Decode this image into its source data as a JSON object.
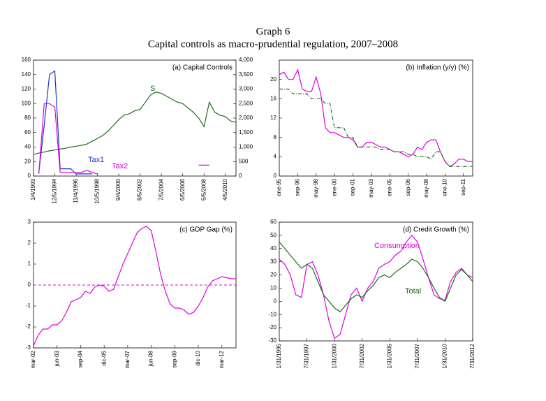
{
  "header": {
    "title": "Graph 6",
    "subtitle": "Capital controls as macro-prudential regulation, 2007–2008"
  },
  "chart_data": [
    {
      "type": "line",
      "title": "(a) Capital Controls",
      "categories": [
        "1/4/1993",
        null,
        null,
        null,
        "12/5/1994",
        null,
        null,
        null,
        "11/4/1996",
        null,
        null,
        null,
        "10/5/1998",
        null,
        null,
        null,
        "9/4/2000",
        null,
        null,
        null,
        "8/5/2002",
        null,
        null,
        null,
        "7/5/2004",
        null,
        null,
        null,
        "6/5/2006",
        null,
        null,
        null,
        "5/5/2008",
        null,
        null,
        null,
        "4/5/2010",
        null,
        null
      ],
      "ylim": [
        0,
        160
      ],
      "yticks": [
        0,
        20,
        40,
        60,
        80,
        100,
        120,
        140,
        160
      ],
      "y2lim": [
        0,
        4000
      ],
      "y2ticks": [
        0,
        500,
        {
          "value": 1000,
          "label": "1,000"
        },
        {
          "value": 1500,
          "label": "1,500"
        },
        {
          "value": 2000,
          "label": "2,000"
        },
        {
          "value": 2500,
          "label": "2,500"
        },
        {
          "value": 3000,
          "label": "3,000"
        },
        {
          "value": 3500,
          "label": "3,500"
        },
        {
          "value": 4000,
          "label": "4,000"
        }
      ],
      "series": [
        {
          "name": "S",
          "color": "#1e6b1e",
          "axis": "y2",
          "values": [
            750,
            790,
            830,
            870,
            900,
            930,
            960,
            1000,
            1030,
            1060,
            1100,
            1200,
            1300,
            1400,
            1550,
            1750,
            1950,
            2100,
            2150,
            2250,
            2300,
            2550,
            2800,
            2900,
            2850,
            2750,
            2650,
            2550,
            2500,
            2350,
            2200,
            2000,
            1700,
            2550,
            2200,
            2100,
            2050,
            1900,
            1850
          ]
        },
        {
          "name": "Tax1",
          "color": "#2233cc",
          "values": [
            null,
            5,
            70,
            140,
            145,
            10,
            10,
            10,
            3,
            3,
            3,
            3,
            null,
            null,
            null,
            null,
            null,
            null,
            null,
            null,
            null,
            null,
            null,
            null,
            null,
            null,
            null,
            null,
            null,
            null,
            null,
            null,
            null,
            null,
            null,
            null,
            null,
            null,
            null
          ]
        },
        {
          "name": "Tax2",
          "color": "#e000e0",
          "values": [
            null,
            3,
            100,
            100,
            95,
            5,
            5,
            5,
            5,
            5,
            8,
            5,
            3,
            null,
            null,
            null,
            null,
            null,
            null,
            null,
            null,
            null,
            null,
            null,
            null,
            null,
            null,
            null,
            null,
            null,
            null,
            15,
            15,
            15,
            null,
            null,
            null,
            null,
            null
          ]
        }
      ]
    },
    {
      "type": "line",
      "title": "(b) Inflation (y/y) (%)",
      "categories": [
        "ene-95",
        null,
        null,
        null,
        "sep-96",
        null,
        null,
        null,
        "may-98",
        null,
        null,
        null,
        "ene-00",
        null,
        null,
        null,
        "sep-01",
        null,
        null,
        null,
        "may-03",
        null,
        null,
        null,
        "ene-05",
        null,
        null,
        null,
        "sep-06",
        null,
        null,
        null,
        "may-08",
        null,
        null,
        null,
        "ene-10",
        null,
        null,
        null,
        "sep-11",
        null,
        null
      ],
      "ylim": [
        0,
        24
      ],
      "yticks": [
        0,
        4,
        8,
        12,
        16,
        20
      ],
      "series": [
        {
          "color": "#e000e0",
          "values": [
            21,
            21.5,
            20,
            20,
            22,
            18,
            17.5,
            17.5,
            20.5,
            17,
            10,
            9,
            9,
            8.5,
            8,
            8,
            7.5,
            6,
            6,
            7,
            7,
            6.5,
            6,
            6,
            5.5,
            5,
            5,
            4.5,
            4,
            4.5,
            6,
            5.5,
            7,
            7.5,
            7.5,
            5,
            3,
            2,
            2.5,
            3.5,
            3.5,
            3,
            3
          ]
        },
        {
          "color": "#1e6b1e",
          "dashed": true,
          "values": [
            18,
            18,
            18,
            17,
            17,
            17,
            17,
            16,
            16,
            16,
            15,
            15,
            10,
            10,
            10,
            8,
            8,
            6,
            6,
            6,
            6,
            6,
            5.5,
            5.5,
            5.5,
            5,
            5,
            5,
            4.5,
            4.5,
            4,
            4,
            4,
            3.5,
            5,
            5,
            3,
            2,
            2,
            2,
            2,
            2,
            2
          ]
        }
      ]
    },
    {
      "type": "line",
      "title": "(c) GDP Gap (%)",
      "categories": [
        "mar-02",
        null,
        null,
        null,
        null,
        "jun-03",
        null,
        null,
        null,
        null,
        "sep-04",
        null,
        null,
        null,
        null,
        "dic-05",
        null,
        null,
        null,
        null,
        "mar-07",
        null,
        null,
        null,
        null,
        "jun-08",
        null,
        null,
        null,
        null,
        "sep-09",
        null,
        null,
        null,
        null,
        "dic-10",
        null,
        null,
        null,
        null,
        "mar-12",
        null,
        null,
        null
      ],
      "ylim": [
        -3,
        3
      ],
      "yticks": [
        -3,
        -2,
        -1,
        0,
        1,
        2,
        3
      ],
      "reference_line": {
        "value": 0,
        "color": "#e000e0",
        "dashed": true
      },
      "color": "#e000e0",
      "values": [
        -2.9,
        -2.4,
        -2.1,
        -2.1,
        -1.9,
        -1.9,
        -1.7,
        -1.3,
        -0.8,
        -0.7,
        -0.6,
        -0.3,
        -0.4,
        -0.1,
        0,
        -0.05,
        -0.3,
        -0.2,
        0.4,
        1.0,
        1.5,
        2.0,
        2.5,
        2.7,
        2.8,
        2.6,
        1.6,
        0.5,
        -0.3,
        -0.9,
        -1.1,
        -1.1,
        -1.2,
        -1.4,
        -1.3,
        -1.0,
        -0.6,
        -0.1,
        0.2,
        0.3,
        0.4,
        0.35,
        0.3,
        0.3
      ]
    },
    {
      "type": "line",
      "title": "(d) Credit Growth (%)",
      "categories": [
        "1/31/1995",
        null,
        null,
        null,
        null,
        "7/31/1997",
        null,
        null,
        null,
        null,
        "1/31/2000",
        null,
        null,
        null,
        null,
        "7/31/2002",
        null,
        null,
        null,
        null,
        "1/31/2005",
        null,
        null,
        null,
        null,
        "7/31/2007",
        null,
        null,
        null,
        null,
        "1/31/2010",
        null,
        null,
        null,
        null,
        "7/31/2012"
      ],
      "ylim": [
        -30,
        60
      ],
      "yticks": [
        -30,
        -20,
        -10,
        0,
        10,
        20,
        30,
        40,
        50,
        60
      ],
      "series": [
        {
          "name": "Consumption",
          "color": "#e000e0",
          "values": [
            32,
            28,
            20,
            5,
            3,
            28,
            30,
            20,
            5,
            -15,
            -28,
            -25,
            -10,
            5,
            10,
            0,
            10,
            15,
            25,
            28,
            30,
            35,
            38,
            45,
            50,
            45,
            32,
            18,
            5,
            2,
            1,
            15,
            22,
            25,
            20,
            18
          ]
        },
        {
          "name": "Total",
          "color": "#1e6b1e",
          "values": [
            45,
            40,
            35,
            30,
            25,
            28,
            25,
            15,
            5,
            0,
            -5,
            -8,
            -3,
            2,
            5,
            3,
            8,
            12,
            18,
            20,
            18,
            22,
            25,
            28,
            32,
            30,
            25,
            18,
            10,
            3,
            0,
            10,
            20,
            24,
            20,
            15
          ]
        }
      ]
    }
  ]
}
